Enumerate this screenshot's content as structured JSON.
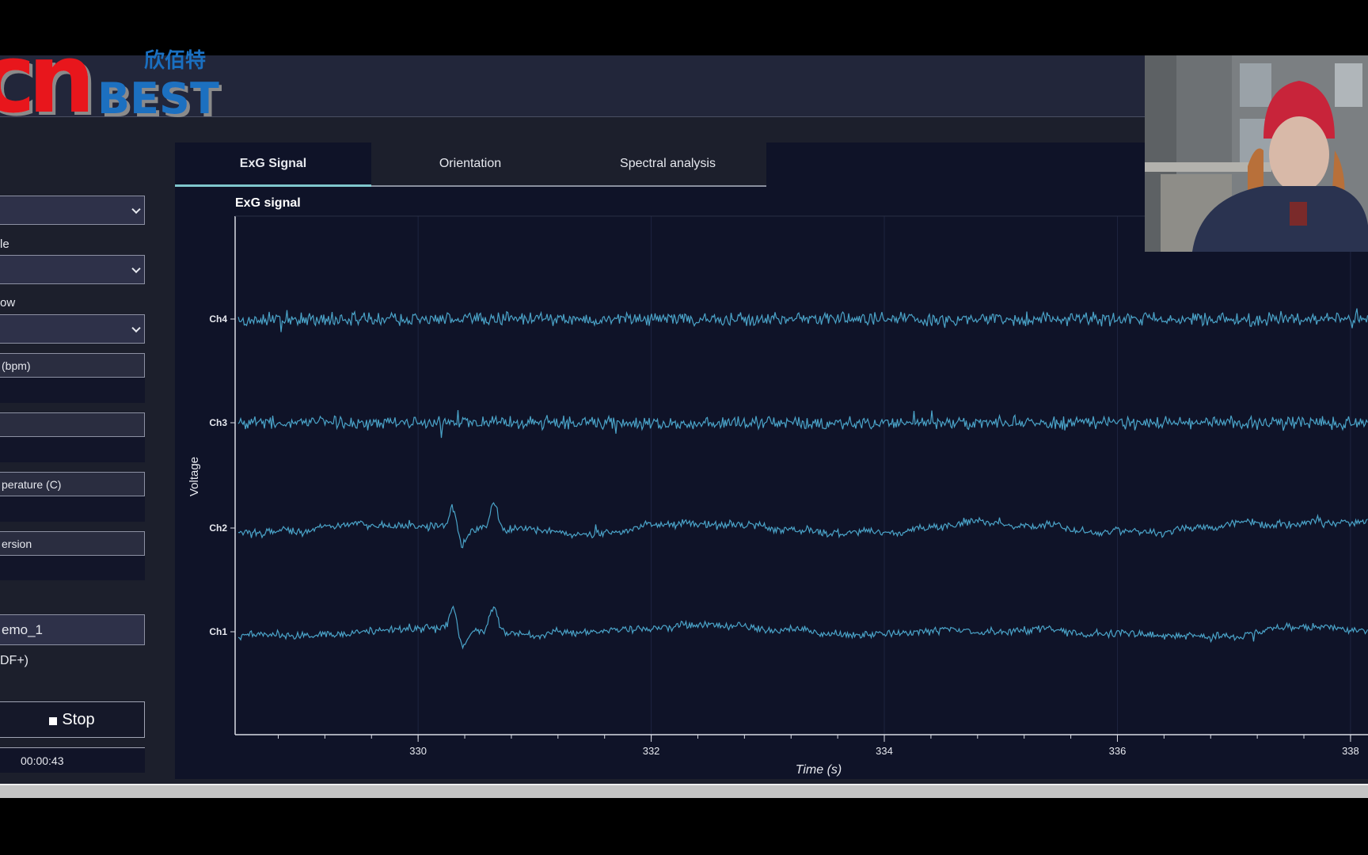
{
  "logo": {
    "latin": "CN BEST",
    "chinese": "欣佰特",
    "colors": {
      "red": "#e8141b",
      "blue": "#1a6fc0"
    }
  },
  "sidebar": {
    "labels": [
      "le",
      "ow",
      "DF+)"
    ],
    "fields": [
      "(bpm)",
      "",
      "perature (C)",
      "ersion"
    ],
    "filename": "emo_1",
    "stop_label": "Stop",
    "timer": "00:00:43"
  },
  "tabs": [
    {
      "label": "ExG Signal",
      "active": true
    },
    {
      "label": "Orientation",
      "active": false
    },
    {
      "label": "Spectral analysis",
      "active": false
    }
  ],
  "accent": "#7fc6cc",
  "chart_data": {
    "type": "line",
    "title": "ExG signal",
    "xlabel": "Time (s)",
    "ylabel": "Voltage",
    "xlim": [
      328.43,
      338.15
    ],
    "x_ticks": [
      "330",
      "332",
      "334",
      "336",
      "338"
    ],
    "channels": [
      "Ch4",
      "Ch3",
      "Ch2",
      "Ch1"
    ],
    "line_color": "#4aa3c8",
    "grid": true
  },
  "webcam": {
    "icon": "webcam-video-feed"
  }
}
